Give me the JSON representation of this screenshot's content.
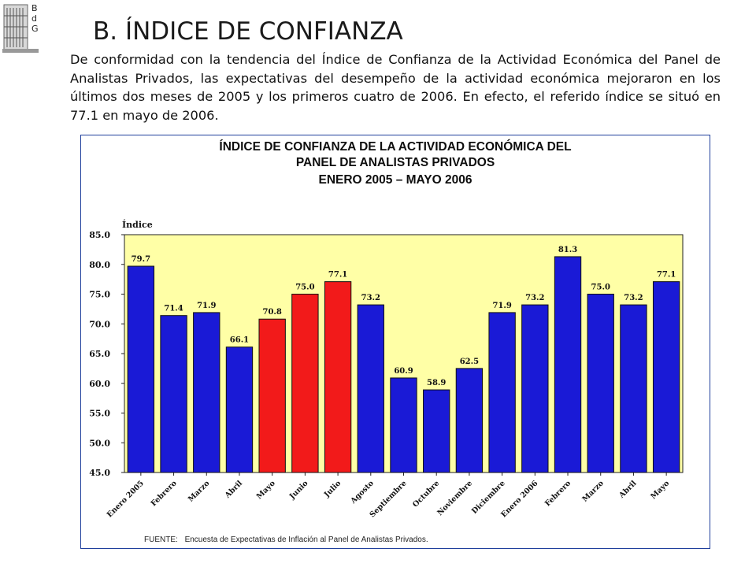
{
  "logo": {
    "letters": [
      "B",
      "d",
      "G"
    ]
  },
  "page_title": "B. ÍNDICE DE CONFIANZA",
  "intro_text": "De conformidad con la tendencia del Índice de Confianza de la Actividad Económica del Panel de Analistas Privados, las expectativas del desempeño de la actividad económica mejoraron en los últimos dos meses de 2005 y los primeros cuatro de 2006. En efecto, el referido índice se situó en 77.1 en mayo de 2006.",
  "chart_data": {
    "type": "bar",
    "title_lines": [
      "ÍNDICE DE CONFIANZA DE LA ACTIVIDAD ECONÓMICA DEL",
      "PANEL DE ANALISTAS PRIVADOS",
      "ENERO 2005  –  MAYO 2006"
    ],
    "ylabel": "Índice",
    "ylim": [
      45,
      85
    ],
    "yticks": [
      "45.0",
      "50.0",
      "55.0",
      "60.0",
      "65.0",
      "70.0",
      "75.0",
      "80.0",
      "85.0"
    ],
    "grid": false,
    "plot_background": "#ffffa6",
    "categories": [
      "Enero 2005",
      "Febrero",
      "Marzo",
      "Abril",
      "Mayo",
      "Junio",
      "Julio",
      "Agosto",
      "Septiembre",
      "Octubre",
      "Noviembre",
      "Diciembre",
      "Enero 2006",
      "Febrero",
      "Marzo",
      "Abril",
      "Mayo"
    ],
    "values": [
      79.7,
      71.4,
      71.9,
      66.1,
      70.8,
      75.0,
      77.1,
      73.2,
      60.9,
      58.9,
      62.5,
      71.9,
      73.2,
      81.3,
      75.0,
      73.2,
      77.1
    ],
    "value_labels": [
      "79.7",
      "71.4",
      "71.9",
      "66.1",
      "70.8",
      "75.0",
      "77.1",
      "73.2",
      "60.9",
      "58.9",
      "62.5",
      "71.9",
      "73.2",
      "81.3",
      "75.0",
      "73.2",
      "77.1"
    ],
    "highlight_indices": [
      4,
      5,
      6
    ],
    "colors": {
      "default": "#1a1ad6",
      "highlight": "#f21a1a"
    }
  },
  "source": {
    "label": "FUENTE:",
    "text": "Encuesta de Expectativas de Inflación al Panel de Analistas Privados."
  }
}
